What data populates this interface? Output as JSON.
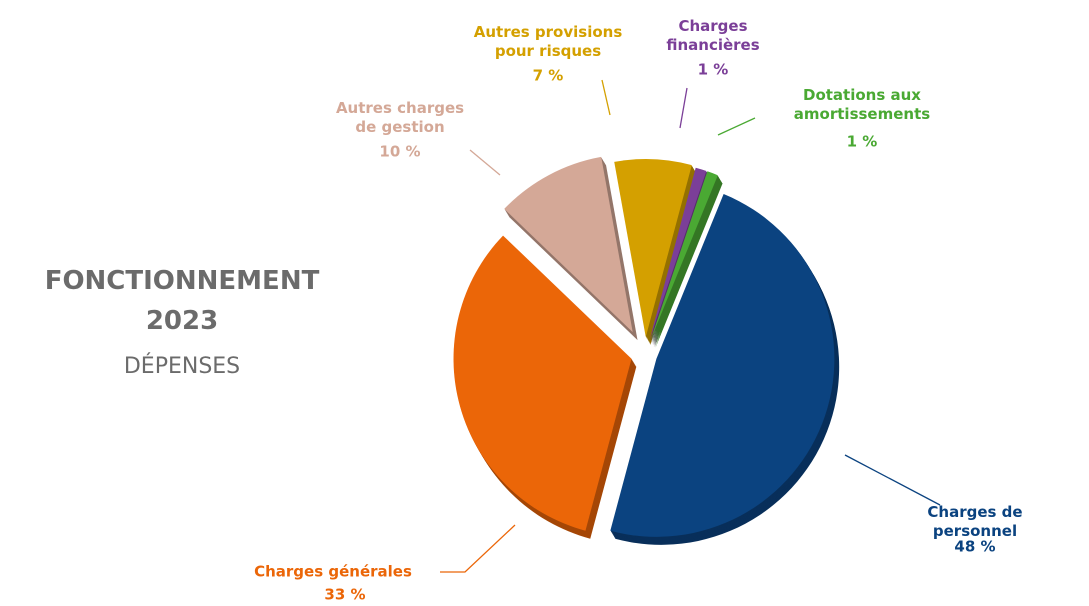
{
  "chart_data": {
    "type": "pie",
    "title": [
      "FONCTIONNEMENT",
      "2023"
    ],
    "subtitle": "DÉPENSES",
    "categories": [
      "Charges de personnel",
      "Charges générales",
      "Autres charges\nde gestion",
      "Autres provisions\npour risques",
      "Charges\nfinancières",
      "Dotations aux\namortissements"
    ],
    "values": [
      48,
      33,
      10,
      7,
      1,
      1
    ],
    "value_labels": [
      "48 %",
      "33 %",
      "10 %",
      "7 %",
      "1 %",
      "1 %"
    ],
    "colors": [
      "#0b4380",
      "#eb6608",
      "#d4a897",
      "#d4a000",
      "#7b3f98",
      "#4aa933"
    ]
  }
}
